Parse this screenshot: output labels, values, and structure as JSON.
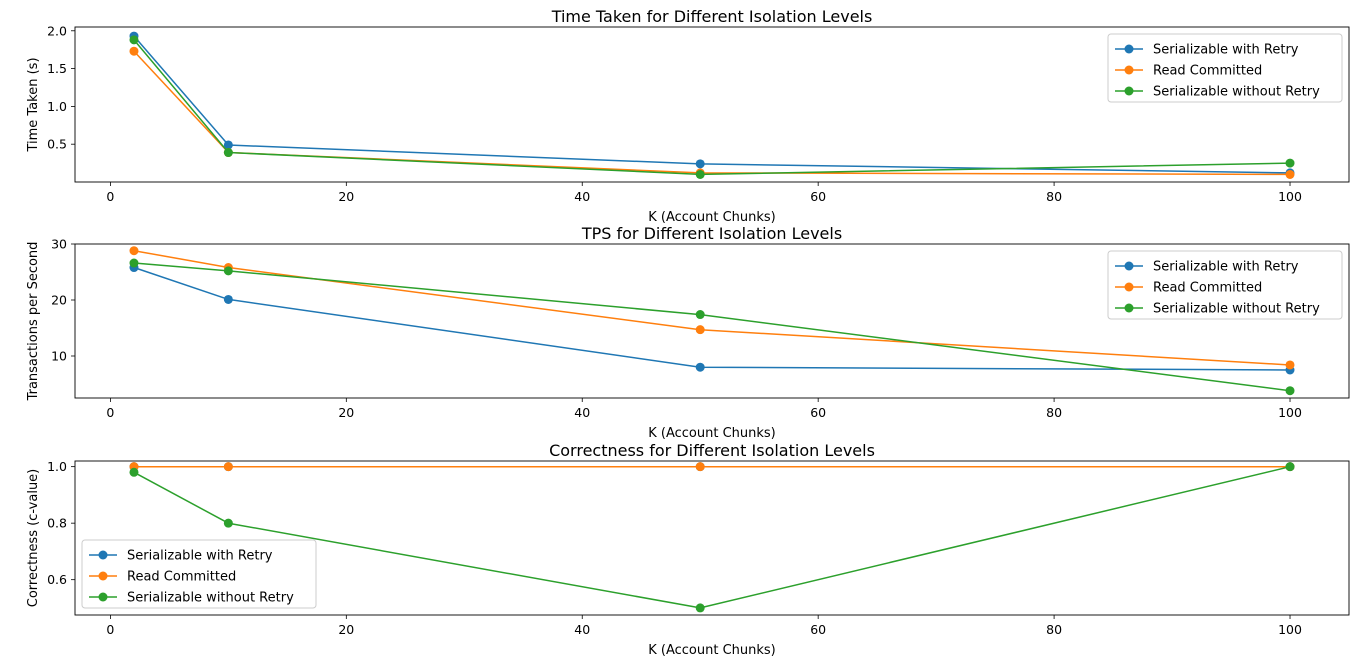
{
  "chart_data": [
    {
      "type": "line",
      "title": "Time Taken for Different Isolation Levels",
      "xlabel": "K (Account Chunks)",
      "ylabel": "Time Taken (s)",
      "xlim": [
        -3,
        105
      ],
      "ylim": [
        0.0,
        2.05
      ],
      "xticks": [
        0,
        20,
        40,
        60,
        80,
        100
      ],
      "yticks": [
        0.5,
        1.0,
        1.5,
        2.0
      ],
      "ytick_labels": [
        "0.5",
        "1.0",
        "1.5",
        "2.0"
      ],
      "legend": "upper right",
      "x": [
        2,
        10,
        50,
        100
      ],
      "series": [
        {
          "name": "Serializable with Retry",
          "color": "#1f77b4",
          "values": [
            1.93,
            0.49,
            0.24,
            0.12
          ]
        },
        {
          "name": "Read Committed",
          "color": "#ff7f0e",
          "values": [
            1.73,
            0.39,
            0.12,
            0.1
          ]
        },
        {
          "name": "Serializable without Retry",
          "color": "#2ca02c",
          "values": [
            1.88,
            0.39,
            0.1,
            0.25
          ]
        }
      ]
    },
    {
      "type": "line",
      "title": "TPS for Different Isolation Levels",
      "xlabel": "K (Account Chunks)",
      "ylabel": "Transactions per Second",
      "xlim": [
        -3,
        105
      ],
      "ylim": [
        2.5,
        30
      ],
      "xticks": [
        0,
        20,
        40,
        60,
        80,
        100
      ],
      "yticks": [
        10,
        20,
        30
      ],
      "ytick_labels": [
        "10",
        "20",
        "30"
      ],
      "legend": "upper right",
      "x": [
        2,
        10,
        50,
        100
      ],
      "series": [
        {
          "name": "Serializable with Retry",
          "color": "#1f77b4",
          "values": [
            25.8,
            20.1,
            8.0,
            7.5
          ]
        },
        {
          "name": "Read Committed",
          "color": "#ff7f0e",
          "values": [
            28.8,
            25.8,
            14.7,
            8.4
          ]
        },
        {
          "name": "Serializable without Retry",
          "color": "#2ca02c",
          "values": [
            26.6,
            25.2,
            17.4,
            3.8
          ]
        }
      ]
    },
    {
      "type": "line",
      "title": "Correctness for Different Isolation Levels",
      "xlabel": "K (Account Chunks)",
      "ylabel": "Correctness (c-value)",
      "xlim": [
        -3,
        105
      ],
      "ylim": [
        0.475,
        1.02
      ],
      "xticks": [
        0,
        20,
        40,
        60,
        80,
        100
      ],
      "yticks": [
        0.6,
        0.8,
        1.0
      ],
      "ytick_labels": [
        "0.6",
        "0.8",
        "1.0"
      ],
      "legend": "lower left",
      "x": [
        2,
        10,
        50,
        100
      ],
      "series": [
        {
          "name": "Serializable with Retry",
          "color": "#1f77b4",
          "values": [
            1.0,
            1.0,
            1.0,
            1.0
          ]
        },
        {
          "name": "Read Committed",
          "color": "#ff7f0e",
          "values": [
            1.0,
            1.0,
            1.0,
            1.0
          ]
        },
        {
          "name": "Serializable without Retry",
          "color": "#2ca02c",
          "values": [
            0.98,
            0.8,
            0.5,
            1.0
          ]
        }
      ]
    }
  ]
}
